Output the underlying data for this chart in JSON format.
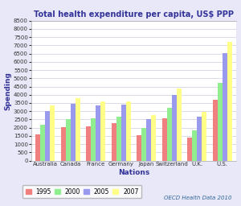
{
  "title": "Total health expenditure per capita, US$ PPP",
  "xlabel": "Nations",
  "ylabel": "Spending",
  "categories": [
    "Australia",
    "Canada",
    "France",
    "Germany",
    "Japan",
    "Switzerland",
    "U.K.",
    "U.S."
  ],
  "series": {
    "1995": [
      1600,
      2050,
      2100,
      2270,
      1550,
      2580,
      1400,
      3700
    ],
    "2000": [
      2200,
      2500,
      2550,
      2650,
      2000,
      3200,
      1820,
      4700
    ],
    "2005": [
      3000,
      3450,
      3350,
      3400,
      2500,
      4000,
      2680,
      6550
    ],
    "2007": [
      3350,
      3800,
      3600,
      3600,
      2750,
      4400,
      2980,
      7200
    ]
  },
  "colors": {
    "1995": "#f08080",
    "2000": "#90ee90",
    "2005": "#9999ee",
    "2007": "#ffff88"
  },
  "legend_labels": [
    "1995",
    "2000",
    "2005",
    "2007"
  ],
  "ylim": [
    0,
    8500
  ],
  "yticks": [
    0,
    500,
    1000,
    1500,
    2000,
    2500,
    3000,
    3500,
    4000,
    4500,
    5000,
    5500,
    6000,
    6500,
    7000,
    7500,
    8000,
    8500
  ],
  "annotation": "OECD Health Data 2010",
  "bg_color": "#e8e8f8",
  "plot_bg_color": "#ffffff",
  "title_color": "#333399",
  "axis_label_color": "#333399",
  "annotation_color": "#336699",
  "bar_width": 0.19,
  "grid_color": "#ccccdd"
}
